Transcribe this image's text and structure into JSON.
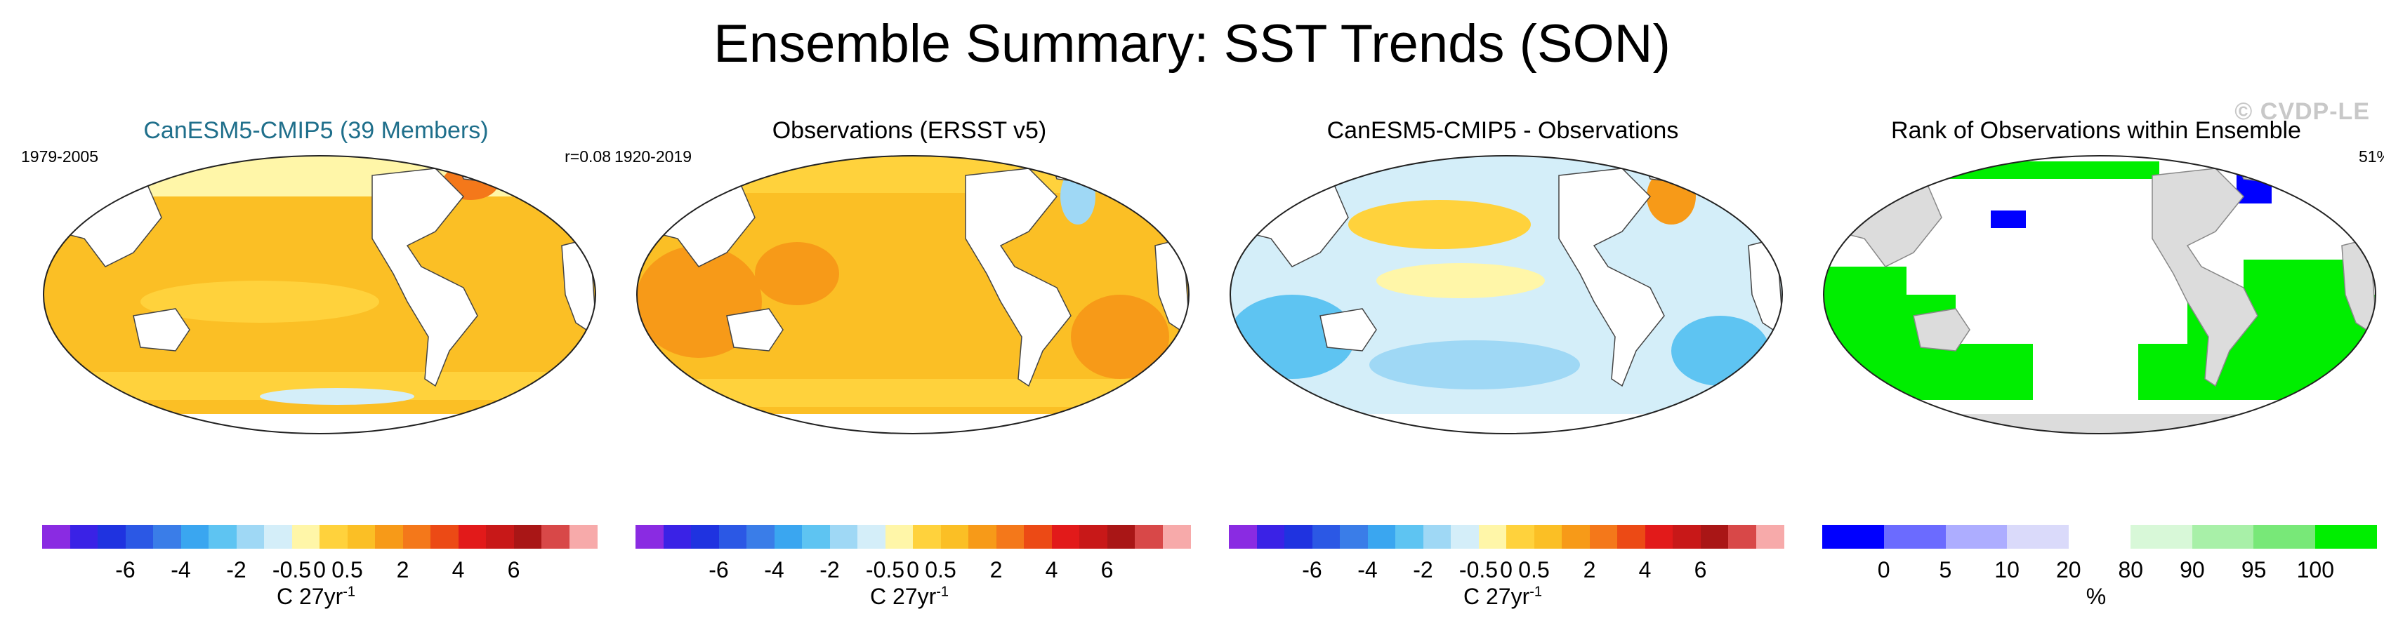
{
  "title": "Ensemble Summary: SST Trends (SON)",
  "watermark": "© CVDP-LE",
  "colors": {
    "diverging": [
      "#8a2be2",
      "#3a22e6",
      "#1f33e0",
      "#2b58e5",
      "#3a7de8",
      "#3aa6f0",
      "#5ec4f2",
      "#9fd8f5",
      "#d4eef9",
      "#fff6a8",
      "#ffd23c",
      "#fbbf25",
      "#f79a18",
      "#f4781a",
      "#ec4a15",
      "#e21a1a",
      "#c81818",
      "#a91616",
      "#d84848",
      "#f7aaaa"
    ],
    "rank": [
      "#0000ff",
      "#6b6bff",
      "#adadff",
      "#dadafa",
      "#ffffff",
      "#d8f8d8",
      "#a8f0a8",
      "#78e878",
      "#00ee00"
    ],
    "land": "#ffffff",
    "land_rank": "#dcdcdc"
  },
  "panels": [
    {
      "title": "CanESM5-CMIP5 (39 Members)",
      "left_label": "1979-2005",
      "right_label": "r=0.08",
      "unit_base": "C 27yr",
      "unit_exp": "-1",
      "ticks": [
        "-6",
        "-4",
        "-2",
        "-0.5",
        "0",
        "0.5",
        "2",
        "4",
        "6"
      ]
    },
    {
      "title": "Observations (ERSST v5)",
      "left_label": "1920-2019",
      "right_label": "",
      "unit_base": "C 27yr",
      "unit_exp": "-1",
      "ticks": [
        "-6",
        "-4",
        "-2",
        "-0.5",
        "0",
        "0.5",
        "2",
        "4",
        "6"
      ]
    },
    {
      "title": "CanESM5-CMIP5 - Observations",
      "left_label": "",
      "right_label": "",
      "unit_base": "C 27yr",
      "unit_exp": "-1",
      "ticks": [
        "-6",
        "-4",
        "-2",
        "-0.5",
        "0",
        "0.5",
        "2",
        "4",
        "6"
      ]
    },
    {
      "title": "Rank of Observations within Ensemble",
      "left_label": "",
      "right_label": "51%",
      "unit_base": "%",
      "unit_exp": "",
      "ticks": [
        "0",
        "5",
        "10",
        "20",
        "80",
        "90",
        "95",
        "100"
      ]
    }
  ]
}
